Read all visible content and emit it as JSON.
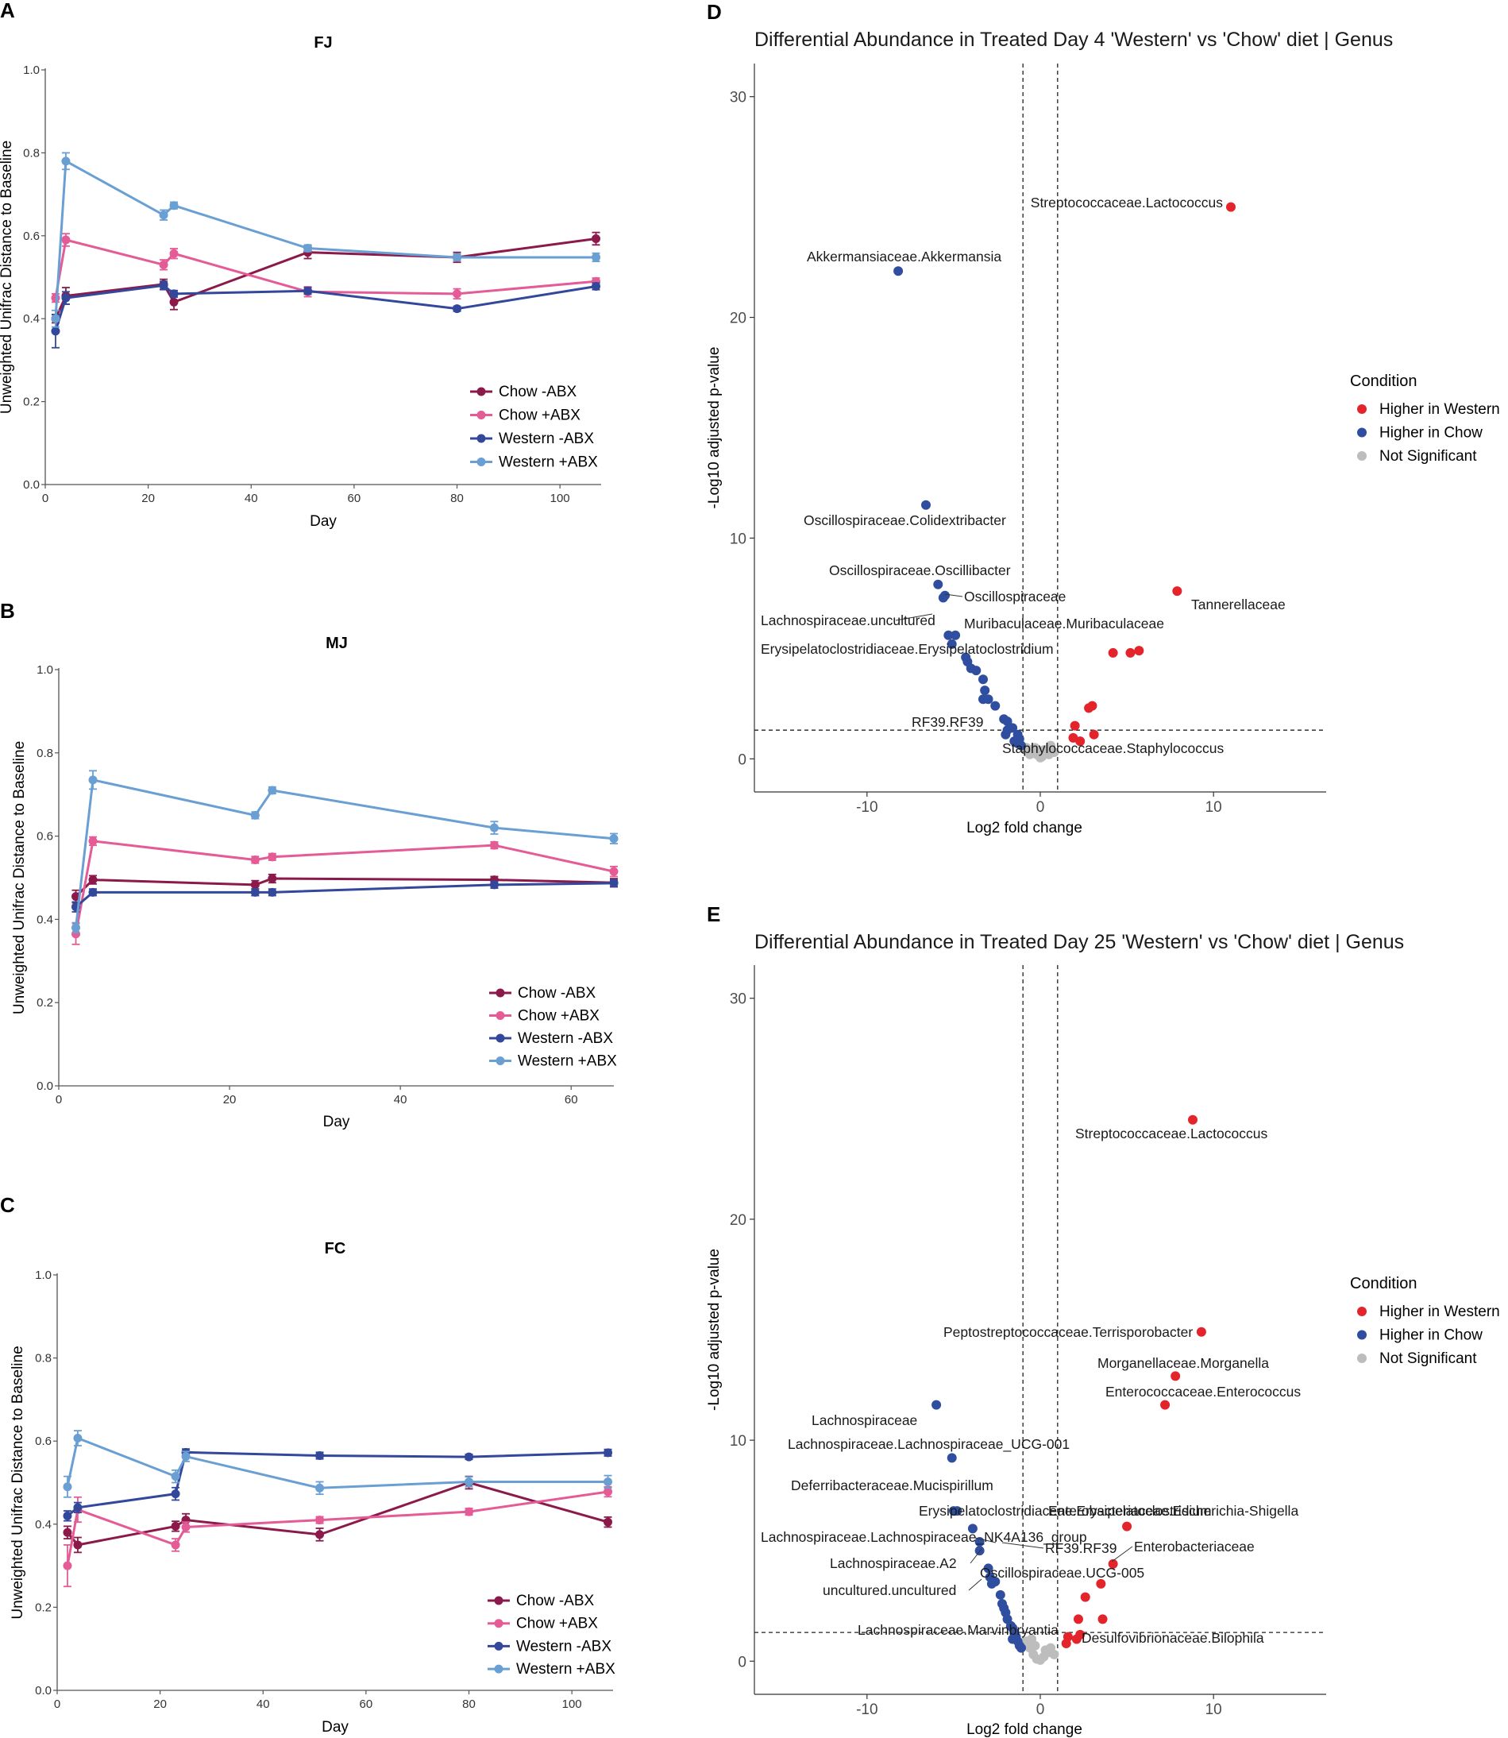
{
  "panels": {
    "A": "A",
    "B": "B",
    "C": "C",
    "D": "D",
    "E": "E"
  },
  "colors": {
    "chow_noabx": "#8b1a4b",
    "chow_abx": "#e45b96",
    "western_noabx": "#33479b",
    "western_abx": "#6a9fd3",
    "higher_western": "#e3242b",
    "higher_chow": "#2f4e9f",
    "not_sig": "#bdbdbd"
  },
  "chart_data": [
    {
      "id": "A",
      "type": "line",
      "title": "FJ",
      "xlabel": "Day",
      "ylabel": "Unweighted Unifrac Distance to Baseline",
      "xlim": [
        0,
        108
      ],
      "ylim": [
        0,
        1.0
      ],
      "xticks": [
        0,
        20,
        40,
        60,
        80,
        100
      ],
      "yticks": [
        0.0,
        0.2,
        0.4,
        0.6,
        0.8,
        1.0
      ],
      "ytick_labels": [
        "0.0",
        "0.2",
        "0.4",
        "0.6",
        "0.8",
        "1.0"
      ],
      "series": [
        {
          "name": "Chow -ABX",
          "color": "#8b1a4b",
          "x": [
            2,
            4,
            23,
            25,
            51,
            80,
            107
          ],
          "y": [
            0.4,
            0.455,
            0.483,
            0.44,
            0.56,
            0.548,
            0.593
          ],
          "err": [
            0.01,
            0.02,
            0.012,
            0.018,
            0.015,
            0.012,
            0.015
          ]
        },
        {
          "name": "Chow +ABX",
          "color": "#e45b96",
          "x": [
            2,
            4,
            23,
            25,
            51,
            80,
            107
          ],
          "y": [
            0.45,
            0.59,
            0.53,
            0.557,
            0.465,
            0.46,
            0.49
          ],
          "err": [
            0.01,
            0.015,
            0.012,
            0.012,
            0.012,
            0.012,
            0.008
          ]
        },
        {
          "name": "Western -ABX",
          "color": "#33479b",
          "x": [
            2,
            4,
            23,
            25,
            51,
            80,
            107
          ],
          "y": [
            0.37,
            0.45,
            0.48,
            0.46,
            0.467,
            0.424,
            0.478
          ],
          "err": [
            0.04,
            0.015,
            0.01,
            0.008,
            0.008,
            0.006,
            0.008
          ]
        },
        {
          "name": "Western +ABX",
          "color": "#6a9fd3",
          "x": [
            2,
            4,
            23,
            25,
            51,
            80,
            107
          ],
          "y": [
            0.4,
            0.78,
            0.65,
            0.673,
            0.57,
            0.548,
            0.548
          ],
          "err": [
            0.02,
            0.02,
            0.012,
            0.008,
            0.008,
            0.008,
            0.01
          ]
        }
      ],
      "legend": [
        "Chow -ABX",
        "Chow +ABX",
        "Western -ABX",
        "Western +ABX"
      ]
    },
    {
      "id": "B",
      "type": "line",
      "title": "MJ",
      "xlabel": "Day",
      "ylabel": "Unweighted Unifrac Distance to Baseline",
      "xlim": [
        0,
        65
      ],
      "ylim": [
        0,
        1.0
      ],
      "xticks": [
        0,
        20,
        40,
        60
      ],
      "yticks": [
        0.0,
        0.2,
        0.4,
        0.6,
        0.8,
        1.0
      ],
      "ytick_labels": [
        "0.0",
        "0.2",
        "0.4",
        "0.6",
        "0.8",
        "1.0"
      ],
      "series": [
        {
          "name": "Chow -ABX",
          "color": "#8b1a4b",
          "x": [
            2,
            4,
            23,
            25,
            51,
            65
          ],
          "y": [
            0.455,
            0.495,
            0.483,
            0.498,
            0.495,
            0.488
          ],
          "err": [
            0.015,
            0.01,
            0.01,
            0.01,
            0.008,
            0.01
          ]
        },
        {
          "name": "Chow +ABX",
          "color": "#e45b96",
          "x": [
            2,
            4,
            23,
            25,
            51,
            65
          ],
          "y": [
            0.365,
            0.588,
            0.543,
            0.55,
            0.578,
            0.515
          ],
          "err": [
            0.025,
            0.01,
            0.008,
            0.008,
            0.008,
            0.012
          ]
        },
        {
          "name": "Western -ABX",
          "color": "#33479b",
          "x": [
            2,
            4,
            23,
            25,
            51,
            65
          ],
          "y": [
            0.43,
            0.465,
            0.465,
            0.465,
            0.483,
            0.487
          ],
          "err": [
            0.012,
            0.008,
            0.008,
            0.008,
            0.008,
            0.008
          ]
        },
        {
          "name": "Western +ABX",
          "color": "#6a9fd3",
          "x": [
            2,
            4,
            23,
            25,
            51,
            65
          ],
          "y": [
            0.38,
            0.735,
            0.65,
            0.71,
            0.62,
            0.594
          ],
          "err": [
            0.012,
            0.022,
            0.008,
            0.008,
            0.015,
            0.012
          ]
        }
      ],
      "legend": [
        "Chow -ABX",
        "Chow +ABX",
        "Western -ABX",
        "Western +ABX"
      ]
    },
    {
      "id": "C",
      "type": "line",
      "title": "FC",
      "xlabel": "Day",
      "ylabel": "Unweighted Unifrac Distance to Baseline",
      "xlim": [
        0,
        108
      ],
      "ylim": [
        0,
        1.0
      ],
      "xticks": [
        0,
        20,
        40,
        60,
        80,
        100
      ],
      "yticks": [
        0.0,
        0.2,
        0.4,
        0.6,
        0.8,
        1.0
      ],
      "ytick_labels": [
        "0.0",
        "0.2",
        "0.4",
        "0.6",
        "0.8",
        "1.0"
      ],
      "series": [
        {
          "name": "Chow -ABX",
          "color": "#8b1a4b",
          "x": [
            2,
            4,
            23,
            25,
            51,
            80,
            107
          ],
          "y": [
            0.38,
            0.35,
            0.395,
            0.41,
            0.375,
            0.5,
            0.405
          ],
          "err": [
            0.015,
            0.018,
            0.012,
            0.015,
            0.015,
            0.015,
            0.012
          ]
        },
        {
          "name": "Chow +ABX",
          "color": "#e45b96",
          "x": [
            2,
            4,
            23,
            25,
            51,
            80,
            107
          ],
          "y": [
            0.3,
            0.435,
            0.35,
            0.393,
            0.41,
            0.43,
            0.478
          ],
          "err": [
            0.05,
            0.03,
            0.015,
            0.012,
            0.008,
            0.008,
            0.012
          ]
        },
        {
          "name": "Western -ABX",
          "color": "#33479b",
          "x": [
            2,
            4,
            23,
            25,
            51,
            80,
            107
          ],
          "y": [
            0.42,
            0.44,
            0.473,
            0.573,
            0.565,
            0.562,
            0.572
          ],
          "err": [
            0.012,
            0.012,
            0.015,
            0.008,
            0.008,
            0.006,
            0.008
          ]
        },
        {
          "name": "Western +ABX",
          "color": "#6a9fd3",
          "x": [
            2,
            4,
            23,
            25,
            51,
            80,
            107
          ],
          "y": [
            0.49,
            0.607,
            0.515,
            0.563,
            0.487,
            0.502,
            0.502
          ],
          "err": [
            0.025,
            0.018,
            0.015,
            0.012,
            0.015,
            0.012,
            0.015
          ]
        }
      ],
      "legend": [
        "Chow -ABX",
        "Chow +ABX",
        "Western -ABX",
        "Western +ABX"
      ]
    },
    {
      "id": "D",
      "type": "scatter",
      "title": "Differential Abundance in Treated Day 4 'Western' vs 'Chow' diet | Genus",
      "xlabel": "Log2 fold change",
      "ylabel": "-Log10 adjusted p-value",
      "xlim": [
        -16.5,
        16.5
      ],
      "ylim": [
        -1.5,
        31.5
      ],
      "xticks": [
        -10,
        0,
        10
      ],
      "yticks": [
        0,
        10,
        20,
        30
      ],
      "vlines": [
        -1,
        1
      ],
      "hline": 1.3,
      "legend_title": "Condition",
      "legend": [
        "Higher in Western",
        "Higher in Chow",
        "Not Significant"
      ],
      "points": {
        "western": [
          [
            11.0,
            25.0
          ],
          [
            7.9,
            7.6
          ],
          [
            5.7,
            4.9
          ],
          [
            5.2,
            4.8
          ],
          [
            4.2,
            4.8
          ],
          [
            3.0,
            2.4
          ],
          [
            2.8,
            2.3
          ],
          [
            2.0,
            1.5
          ],
          [
            3.1,
            1.1
          ],
          [
            1.9,
            0.95
          ],
          [
            2.3,
            0.8
          ]
        ],
        "chow": [
          [
            -8.2,
            22.1
          ],
          [
            -6.6,
            11.5
          ],
          [
            -5.9,
            7.9
          ],
          [
            -5.5,
            7.4
          ],
          [
            -5.6,
            7.3
          ],
          [
            -5.3,
            5.6
          ],
          [
            -4.9,
            5.6
          ],
          [
            -5.1,
            5.2
          ],
          [
            -4.3,
            4.6
          ],
          [
            -4.2,
            4.4
          ],
          [
            -4.0,
            4.1
          ],
          [
            -3.7,
            4.0
          ],
          [
            -3.3,
            3.6
          ],
          [
            -3.2,
            3.1
          ],
          [
            -3.0,
            2.7
          ],
          [
            -3.3,
            2.7
          ],
          [
            -2.6,
            2.4
          ],
          [
            -2.1,
            1.8
          ],
          [
            -1.9,
            1.7
          ],
          [
            -1.6,
            1.4
          ],
          [
            -1.9,
            1.3
          ],
          [
            -1.3,
            1.1
          ],
          [
            -2.0,
            1.1
          ],
          [
            -1.5,
            0.8
          ],
          [
            -1.2,
            0.9
          ],
          [
            -1.1,
            0.6
          ],
          [
            -1.3,
            0.7
          ]
        ],
        "ns": [
          [
            -0.5,
            0.4
          ],
          [
            -0.2,
            0.2
          ],
          [
            0.1,
            0.1
          ],
          [
            0.3,
            0.3
          ],
          [
            -0.8,
            0.5
          ],
          [
            0.5,
            0.2
          ],
          [
            0.6,
            0.6
          ],
          [
            -0.3,
            0.5
          ],
          [
            0.2,
            0.4
          ],
          [
            0.0,
            0.05
          ],
          [
            0.8,
            0.3
          ],
          [
            -0.6,
            0.2
          ]
        ]
      },
      "annotations": [
        {
          "text": "Streptococcaceae.Lactococcus"
        },
        {
          "text": "Akkermansiaceae.Akkermansia"
        },
        {
          "text": "Oscillospiraceae.Colidextribacter"
        },
        {
          "text": "Oscillospiraceae.Oscillibacter"
        },
        {
          "text": "Oscillospiraceae"
        },
        {
          "text": "Tannerellaceae"
        },
        {
          "text": "Lachnospiraceae.uncultured"
        },
        {
          "text": "Muribaculaceae.Muribaculaceae"
        },
        {
          "text": "Erysipelatoclostridiaceae.Erysipelatoclostridium"
        },
        {
          "text": "RF39.RF39"
        },
        {
          "text": "Staphylococcaceae.Staphylococcus"
        }
      ]
    },
    {
      "id": "E",
      "type": "scatter",
      "title": "Differential Abundance in Treated Day 25 'Western' vs 'Chow' diet | Genus",
      "xlabel": "Log2 fold change",
      "ylabel": "-Log10 adjusted p-value",
      "xlim": [
        -16.5,
        16.5
      ],
      "ylim": [
        -1.5,
        31.5
      ],
      "xticks": [
        -10,
        0,
        10
      ],
      "yticks": [
        0,
        10,
        20,
        30
      ],
      "vlines": [
        -1,
        1
      ],
      "hline": 1.3,
      "legend_title": "Condition",
      "legend": [
        "Higher in Western",
        "Higher in Chow",
        "Not Significant"
      ],
      "points": {
        "western": [
          [
            8.8,
            24.5
          ],
          [
            9.3,
            14.9
          ],
          [
            7.8,
            12.9
          ],
          [
            7.2,
            11.6
          ],
          [
            5.0,
            6.1
          ],
          [
            4.2,
            4.4
          ],
          [
            3.5,
            3.5
          ],
          [
            2.6,
            2.9
          ],
          [
            3.6,
            1.9
          ],
          [
            2.2,
            1.9
          ],
          [
            2.3,
            1.2
          ],
          [
            1.6,
            1.1
          ],
          [
            2.1,
            1.0
          ],
          [
            1.5,
            0.8
          ]
        ],
        "chow": [
          [
            -6.0,
            11.6
          ],
          [
            -5.1,
            9.2
          ],
          [
            -5.0,
            6.8
          ],
          [
            -4.8,
            6.8
          ],
          [
            -3.9,
            6.0
          ],
          [
            -3.5,
            5.4
          ],
          [
            -3.5,
            5.0
          ],
          [
            -3.0,
            4.2
          ],
          [
            -2.9,
            3.8
          ],
          [
            -2.8,
            3.5
          ],
          [
            -2.6,
            3.6
          ],
          [
            -2.3,
            3.0
          ],
          [
            -2.2,
            2.6
          ],
          [
            -2.1,
            2.4
          ],
          [
            -2.0,
            2.2
          ],
          [
            -1.9,
            1.9
          ],
          [
            -1.7,
            1.6
          ],
          [
            -1.6,
            1.5
          ],
          [
            -1.5,
            1.3
          ],
          [
            -1.4,
            1.1
          ],
          [
            -1.6,
            1.0
          ],
          [
            -1.3,
            0.9
          ],
          [
            -1.2,
            0.7
          ],
          [
            -1.1,
            0.6
          ]
        ],
        "ns": [
          [
            -0.6,
            0.6
          ],
          [
            -0.4,
            0.3
          ],
          [
            -0.2,
            0.1
          ],
          [
            0.2,
            0.2
          ],
          [
            0.5,
            0.4
          ],
          [
            0.6,
            0.6
          ],
          [
            -0.8,
            0.9
          ],
          [
            -0.5,
            1.0
          ],
          [
            0.0,
            0.05
          ],
          [
            0.3,
            0.5
          ],
          [
            -0.3,
            0.7
          ],
          [
            0.8,
            0.3
          ]
        ]
      },
      "annotations": [
        {
          "text": "Streptococcaceae.Lactococcus"
        },
        {
          "text": "Peptostreptococcaceae.Terrisporobacter"
        },
        {
          "text": "Morganellaceae.Morganella"
        },
        {
          "text": "Enterococcaceae.Enterococcus"
        },
        {
          "text": "Lachnospiraceae"
        },
        {
          "text": "Lachnospiraceae.Lachnospiraceae_UCG-001"
        },
        {
          "text": "Deferribacteraceae.Mucispirillum"
        },
        {
          "text": "Erysipelatoclostridiaceae.Erysipelatoclostridium"
        },
        {
          "text": "Enterobacteriaceae.Escherichia-Shigella"
        },
        {
          "text": "Lachnospiraceae.Lachnospiraceae_NK4A136_group"
        },
        {
          "text": "RF39.RF39"
        },
        {
          "text": "Enterobacteriaceae"
        },
        {
          "text": "Lachnospiraceae.A2"
        },
        {
          "text": "Oscillospiraceae.UCG-005"
        },
        {
          "text": "uncultured.uncultured"
        },
        {
          "text": "Lachnospiraceae.Marvinbryantia"
        },
        {
          "text": "Desulfovibrionaceae.Bilophila"
        }
      ]
    }
  ]
}
